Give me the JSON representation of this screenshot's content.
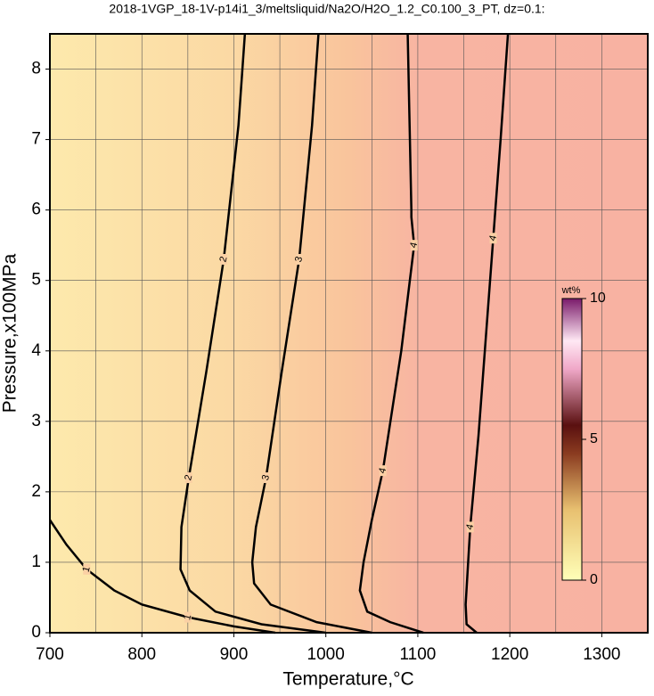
{
  "chart_data": {
    "type": "contour",
    "title": "2018-1VGP_18-1V-p14i1_3/meltsliquid/Na2O/H2O_1.2_C0.100_3_PT, dz=0.1:",
    "x_label": "Temperature,°C",
    "y_label": "Pressure,x100MPa",
    "xlim": [
      700,
      1350
    ],
    "ylim": [
      0,
      8.5
    ],
    "xticks": [
      700,
      800,
      900,
      1000,
      1100,
      1200,
      1300
    ],
    "yticks": [
      0,
      1,
      2,
      3,
      4,
      5,
      6,
      7,
      8
    ],
    "x_gridlines": [
      750,
      800,
      850,
      900,
      950,
      1000,
      1050,
      1100,
      1150,
      1200,
      1250,
      1300
    ],
    "grid": true,
    "contours": [
      {
        "level": 1,
        "x": [
          700,
          718,
          740,
          770,
          800,
          850,
          900,
          945
        ],
        "y": [
          1.6,
          1.25,
          0.9,
          0.6,
          0.4,
          0.22,
          0.09,
          0
        ]
      },
      {
        "level": 2,
        "x": [
          1000,
          930,
          880,
          852,
          842,
          843,
          851,
          870,
          889,
          905,
          912
        ],
        "y": [
          0,
          0.12,
          0.3,
          0.6,
          0.9,
          1.5,
          2.2,
          3.7,
          5.3,
          7.2,
          8.5
        ]
      },
      {
        "level": 3,
        "x": [
          1050,
          990,
          940,
          922,
          920,
          924,
          935,
          952,
          971,
          985,
          992
        ],
        "y": [
          0,
          0.15,
          0.4,
          0.7,
          1.0,
          1.5,
          2.2,
          3.7,
          5.3,
          7.2,
          8.5
        ]
      },
      {
        "level": 4,
        "x": [
          1106,
          1070,
          1045,
          1037,
          1041,
          1050,
          1062,
          1082,
          1096,
          1093,
          1093,
          1089
        ],
        "y": [
          0,
          0.15,
          0.3,
          0.6,
          1.0,
          1.6,
          2.3,
          4.0,
          5.5,
          5.9,
          6.0,
          8.5
        ]
      },
      {
        "level": 4,
        "x": [
          1164,
          1153,
          1152,
          1157,
          1166,
          1174,
          1182,
          1190,
          1198
        ],
        "y": [
          0,
          0.12,
          0.4,
          1.5,
          2.8,
          4.2,
          5.6,
          7.0,
          8.5
        ]
      }
    ],
    "colorbar": {
      "label": "wt%",
      "lim": [
        0,
        10
      ],
      "ticks": [
        0,
        5,
        10
      ]
    }
  }
}
